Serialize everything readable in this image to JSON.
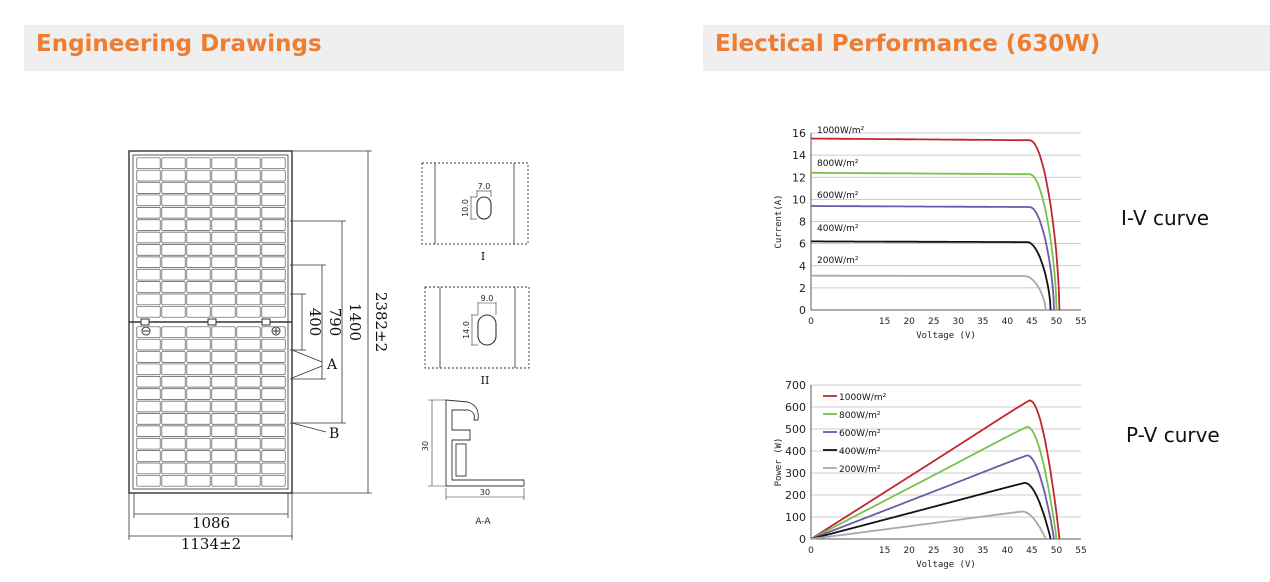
{
  "headers": {
    "left": "Engineering Drawings",
    "right": "Electical Performance (630W)"
  },
  "drawing": {
    "dims": {
      "height_total": "2382±2",
      "dim_1400": "1400",
      "dim_790": "790",
      "dim_400": "400",
      "width_inner": "1086",
      "width_total": "1134±2",
      "label_a": "A",
      "label_b": "B"
    },
    "detail1": {
      "w": "7.0",
      "h": "10.0",
      "label": "I"
    },
    "detail2": {
      "w": "9.0",
      "h": "14.0",
      "label": "II"
    },
    "frame": {
      "h": "30",
      "w": "30",
      "label": "A-A"
    }
  },
  "labels": {
    "iv_curve": "I-V curve",
    "pv_curve": "P-V curve"
  },
  "chart_data": [
    {
      "type": "line",
      "name": "I-V curve",
      "xlabel": "Voltage (V)",
      "ylabel": "Current(A)",
      "xlim": [
        0,
        55
      ],
      "ylim": [
        0,
        16
      ],
      "xticks": [
        0,
        15,
        20,
        25,
        30,
        35,
        40,
        45,
        50,
        55
      ],
      "yticks": [
        0,
        2,
        4,
        6,
        8,
        10,
        12,
        14,
        16
      ],
      "grid": true,
      "series": [
        {
          "name": "1000W/m²",
          "color": "#c0282d",
          "isc": 15.5,
          "voc": 50.6,
          "knee": 44.5
        },
        {
          "name": "800W/m²",
          "color": "#77c14d",
          "isc": 12.4,
          "voc": 50.0,
          "knee": 44.5
        },
        {
          "name": "600W/m²",
          "color": "#6b5aa6",
          "isc": 9.4,
          "voc": 49.5,
          "knee": 44.5
        },
        {
          "name": "400W/m²",
          "color": "#111111",
          "isc": 6.2,
          "voc": 48.8,
          "knee": 44.0
        },
        {
          "name": "200W/m²",
          "color": "#a9a9a9",
          "isc": 3.1,
          "voc": 47.8,
          "knee": 43.5
        }
      ]
    },
    {
      "type": "line",
      "name": "P-V curve",
      "xlabel": "Voltage (V)",
      "ylabel": "Power (W)",
      "xlim": [
        0,
        55
      ],
      "ylim": [
        0,
        700
      ],
      "xticks": [
        0,
        15,
        20,
        25,
        30,
        35,
        40,
        45,
        50,
        55
      ],
      "yticks": [
        0,
        100,
        200,
        300,
        400,
        500,
        600,
        700
      ],
      "grid": true,
      "legend": "top-left",
      "series": [
        {
          "name": "1000W/m²",
          "color": "#c0282d",
          "pmax": 630,
          "vmp": 44.5,
          "voc": 50.6
        },
        {
          "name": "800W/m²",
          "color": "#77c14d",
          "pmax": 510,
          "vmp": 44.0,
          "voc": 50.0
        },
        {
          "name": "600W/m²",
          "color": "#6b5aa6",
          "pmax": 380,
          "vmp": 44.0,
          "voc": 49.5
        },
        {
          "name": "400W/m²",
          "color": "#111111",
          "pmax": 255,
          "vmp": 43.5,
          "voc": 48.8
        },
        {
          "name": "200W/m²",
          "color": "#a9a9a9",
          "pmax": 125,
          "vmp": 43.0,
          "voc": 47.8
        }
      ]
    }
  ]
}
